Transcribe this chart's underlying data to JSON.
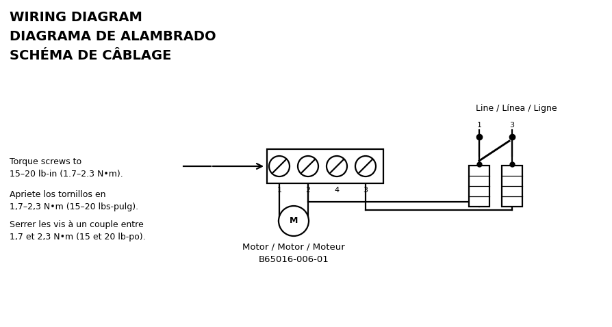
{
  "title_lines": [
    "WIRING DIAGRAM",
    "DIAGRAMA DE ALAMBRADO",
    "SCHÉMA DE CÂBLAGE"
  ],
  "title_fontsize": 14,
  "line_label": "Line / Línea / Ligne",
  "torque_text": "Torque screws to\n15–20 lb-in (1.7–2.3 N•m).",
  "apriete_text": "Apriete los tornillos en\n1,7–2,3 N•m (15–20 lbs-pulg).",
  "serrer_text": "Serrer les vis à un couple entre\n1,7 et 2,3 N•m (15 et 20 lb-po).",
  "motor_label": "Motor / Motor / Moteur\nB65016-006-01",
  "terminal_labels": [
    "1",
    "2",
    "4",
    "3"
  ],
  "bg_color": "#ffffff",
  "fg_color": "#000000",
  "text_fontsize": 9,
  "small_fontsize": 8,
  "lw": 1.6
}
